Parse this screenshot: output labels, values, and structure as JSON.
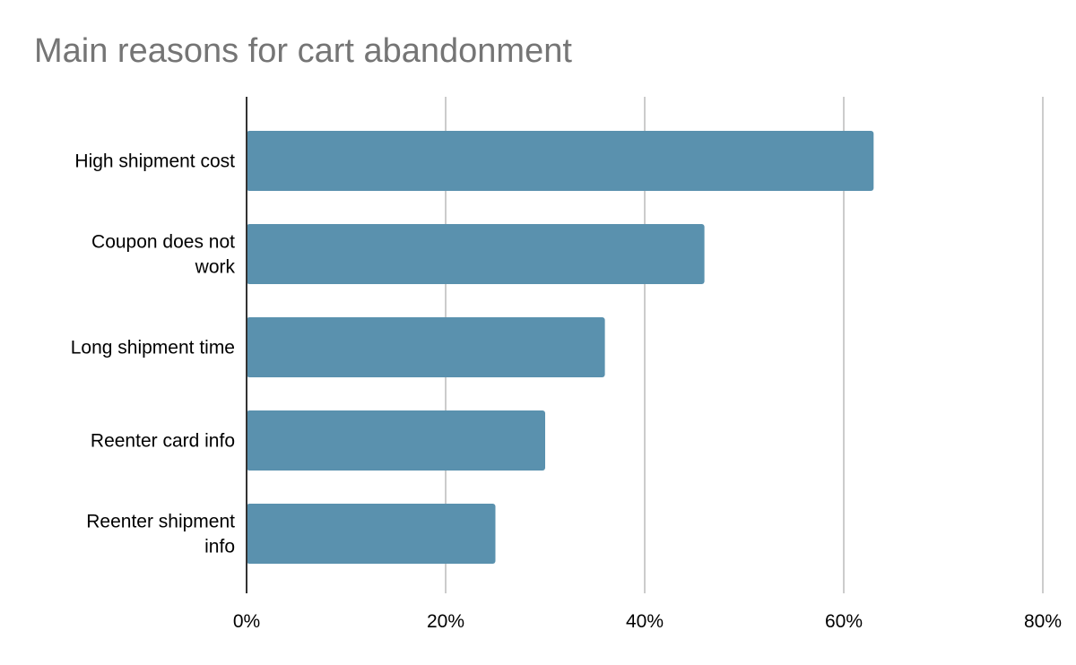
{
  "chart_data": {
    "type": "bar",
    "orientation": "horizontal",
    "title": "Main reasons for cart abandonment",
    "categories": [
      [
        "High shipment cost"
      ],
      [
        "Coupon does not",
        "work"
      ],
      [
        "Long shipment time"
      ],
      [
        "Reenter card info"
      ],
      [
        "Reenter shipment",
        "info"
      ]
    ],
    "values": [
      63,
      46,
      36,
      30,
      25
    ],
    "xlim": [
      0,
      80
    ],
    "ticks": [
      0,
      20,
      40,
      60,
      80
    ],
    "tick_format": "{v}%",
    "grid": true,
    "legend": "none",
    "bar_color": "#5a91ae",
    "grid_color": "#cccccc",
    "axis_color": "#333333"
  }
}
